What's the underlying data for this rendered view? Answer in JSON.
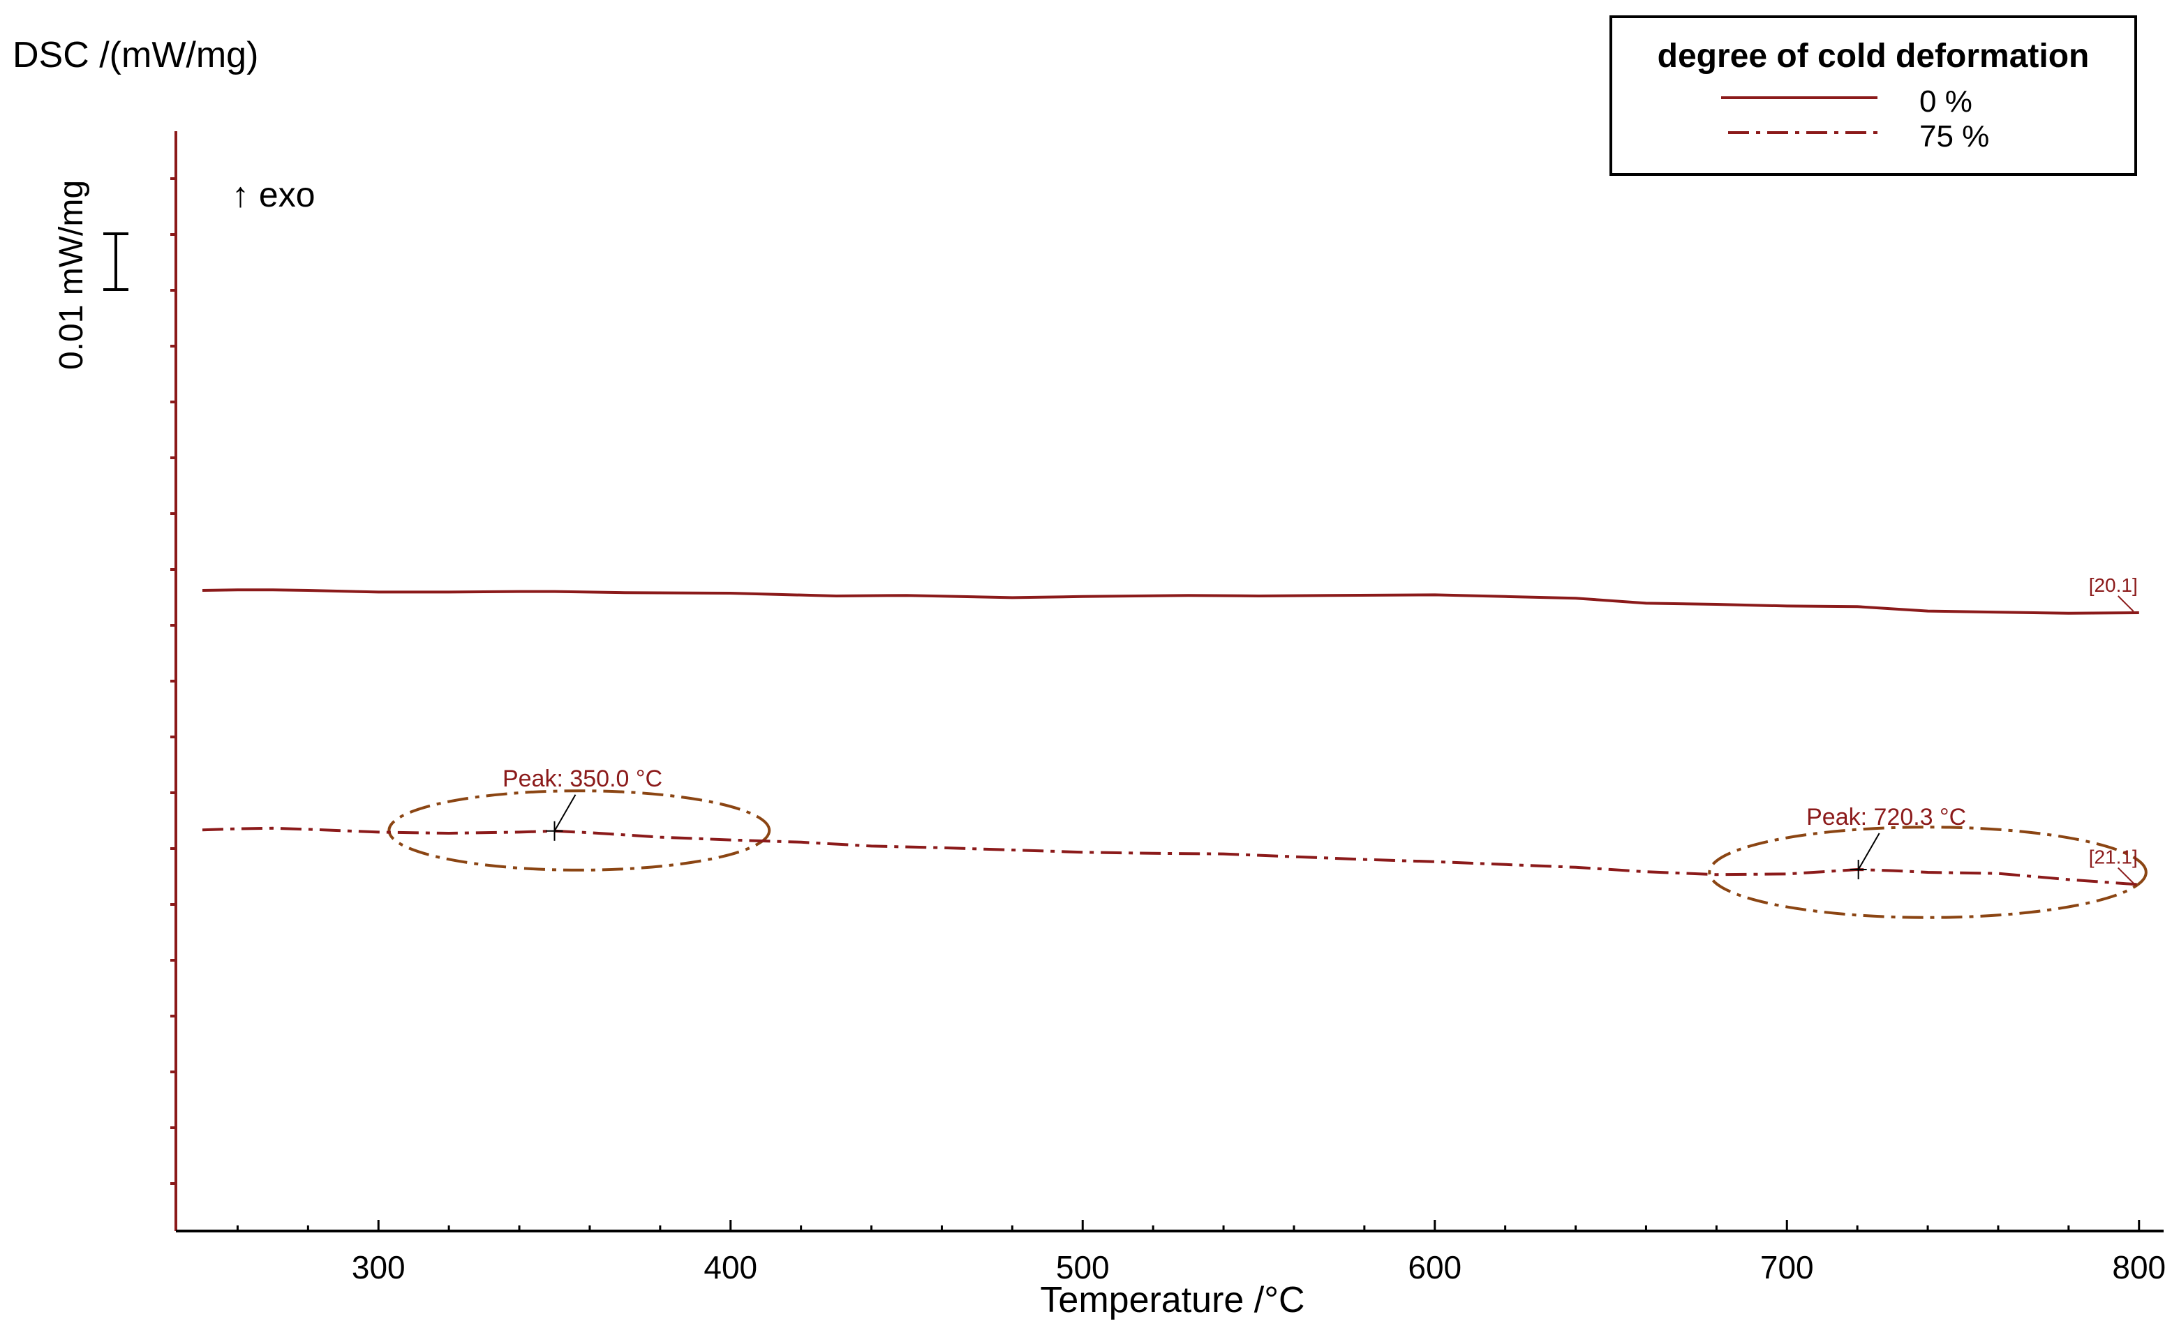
{
  "chart_data": {
    "type": "line",
    "title": "",
    "ylabel": "DSC /(mW/mg)",
    "xlabel": "Temperature /°C",
    "exo_label": "↑ exo",
    "scale_bar_label": "0.01 mW/mg",
    "scale_bar_value": 0.01,
    "xlim": [
      242,
      805
    ],
    "xticks": [
      300,
      400,
      500,
      600,
      700,
      800
    ],
    "xtick_labels": [
      "300",
      "400",
      "500",
      "600",
      "700",
      "800"
    ],
    "grid": false,
    "legend": {
      "title": "degree of cold deformation",
      "position": "top-right",
      "entries": [
        "0 %",
        "75 %"
      ]
    },
    "series": [
      {
        "name": "0 %",
        "style": "solid",
        "color": "#8b1a1a",
        "end_label": "[20.1]",
        "x": [
          250,
          260,
          270,
          280,
          300,
          320,
          340,
          350,
          370,
          400,
          430,
          450,
          480,
          500,
          530,
          550,
          570,
          600,
          620,
          640,
          660,
          680,
          700,
          720,
          740,
          760,
          780,
          800
        ],
        "y": [
          0.0005,
          0.0006,
          0.0006,
          0.0005,
          0.0002,
          0.0002,
          0.0003,
          0.0003,
          0.0001,
          0.0,
          -0.0005,
          -0.0004,
          -0.0008,
          -0.0006,
          -0.0004,
          -0.0005,
          -0.0004,
          -0.0003,
          -0.0006,
          -0.0009,
          -0.0018,
          -0.002,
          -0.0023,
          -0.0024,
          -0.0032,
          -0.0034,
          -0.0036,
          -0.0035
        ]
      },
      {
        "name": "75 %",
        "style": "dash-dot",
        "color": "#8b1a1a",
        "end_label": "[21.1]",
        "x": [
          250,
          260,
          270,
          280,
          300,
          320,
          340,
          350,
          360,
          380,
          400,
          420,
          440,
          460,
          480,
          500,
          520,
          540,
          560,
          580,
          600,
          620,
          640,
          660,
          680,
          700,
          710,
          720,
          730,
          740,
          760,
          780,
          800
        ],
        "y": [
          -0.0424,
          -0.0422,
          -0.0421,
          -0.0423,
          -0.0428,
          -0.043,
          -0.0428,
          -0.0426,
          -0.0429,
          -0.0437,
          -0.0442,
          -0.0446,
          -0.0453,
          -0.0456,
          -0.046,
          -0.0464,
          -0.0466,
          -0.0467,
          -0.0472,
          -0.0477,
          -0.0481,
          -0.0486,
          -0.0491,
          -0.0499,
          -0.0504,
          -0.0503,
          -0.0499,
          -0.0495,
          -0.0497,
          -0.05,
          -0.0502,
          -0.0513,
          -0.0522
        ]
      }
    ],
    "annotations": [
      {
        "label": "Peak: 350.0 °C",
        "x": 350.0,
        "y": -0.0426,
        "series": "75 %"
      },
      {
        "label": "Peak: 720.3 °C",
        "x": 720.3,
        "y": -0.0495,
        "series": "75 %"
      }
    ],
    "highlight_ellipses": [
      {
        "center_x": 357,
        "center_y": -0.0425,
        "rx": 54,
        "ry": 0.0071,
        "color": "#8b4513",
        "style": "dash-dot"
      },
      {
        "center_x": 740,
        "center_y": -0.05,
        "rx": 62,
        "ry": 0.0081,
        "color": "#8b4513",
        "style": "dash-dot"
      }
    ],
    "colors": {
      "axis": "#8b1a1a",
      "series": "#8b1a1a",
      "annotation_text": "#8b1a1a",
      "ellipse": "#8b4513",
      "text": "#000000"
    }
  }
}
